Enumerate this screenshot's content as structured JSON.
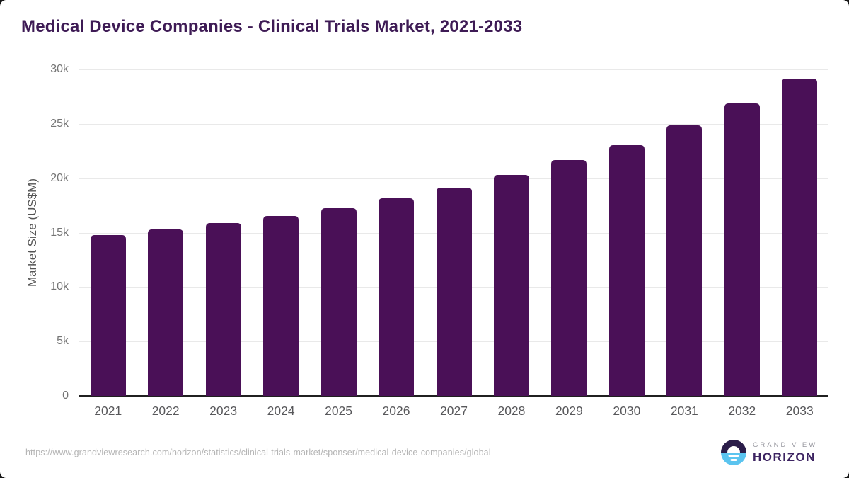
{
  "title": "Medical Device Companies - Clinical Trials Market, 2021-2033",
  "chart_data": {
    "type": "bar",
    "title": "Medical Device Companies - Clinical Trials Market, 2021-2033",
    "categories": [
      "2021",
      "2022",
      "2023",
      "2024",
      "2025",
      "2026",
      "2027",
      "2028",
      "2029",
      "2030",
      "2031",
      "2032",
      "2033"
    ],
    "values": [
      14800,
      15300,
      15900,
      16550,
      17250,
      18150,
      19150,
      20300,
      21650,
      23050,
      24850,
      26900,
      29150
    ],
    "xlabel": "",
    "ylabel": "Market Size (US$M)",
    "ylim": [
      0,
      30000
    ],
    "yticks": [
      {
        "value": 0,
        "label": "0"
      },
      {
        "value": 5000,
        "label": "5k"
      },
      {
        "value": 10000,
        "label": "10k"
      },
      {
        "value": 15000,
        "label": "15k"
      },
      {
        "value": 20000,
        "label": "20k"
      },
      {
        "value": 25000,
        "label": "25k"
      },
      {
        "value": 30000,
        "label": "30k"
      }
    ],
    "grid": "horizontal",
    "legend": "none",
    "bar_color": "#4a1057"
  },
  "colors": {
    "title": "#3e1b55",
    "bar": "#4a1057",
    "gridline": "#e9e9e9",
    "axis_line": "#202020",
    "y_tick_text": "#757575",
    "x_tick_text": "#58585b",
    "url_text": "#b5b5b5",
    "logo_dark": "#2b1d49",
    "logo_blue": "#5bc4ef",
    "logo_purple_text": "#3d2462",
    "logo_gray_text": "#96969e"
  },
  "footer": {
    "source_url": "https://www.grandviewresearch.com/horizon/statistics/clinical-trials-market/sponser/medical-device-companies/global",
    "logo": {
      "icon": "horizon-circle-icon",
      "top_text": "GRAND VIEW",
      "bottom_text": "HORIZON"
    }
  }
}
